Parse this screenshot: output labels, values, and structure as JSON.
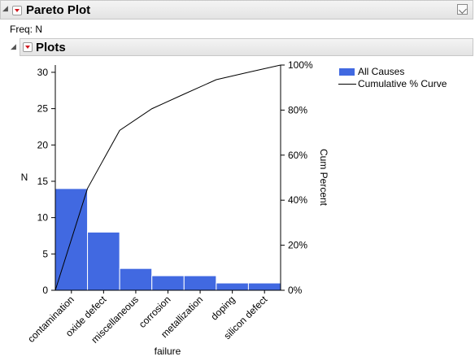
{
  "report": {
    "title": "Pareto Plot",
    "freq_label": "Freq: N"
  },
  "plots_section": {
    "title": "Plots"
  },
  "legend": {
    "items": [
      {
        "label": "All Causes"
      },
      {
        "label": "Cumulative % Curve"
      }
    ]
  },
  "colors": {
    "bar": "#4169e1",
    "header_menu": "#d0181f"
  },
  "chart_data": {
    "type": "bar",
    "categories": [
      "contamination",
      "oxide defect",
      "miscellaneous",
      "corrosion",
      "metallization",
      "doping",
      "silicon defect"
    ],
    "series": [
      {
        "name": "All Causes",
        "values": [
          14,
          8,
          3,
          2,
          2,
          1,
          1
        ]
      },
      {
        "name": "Cumulative % Curve",
        "values": [
          45.2,
          71.0,
          80.6,
          87.1,
          93.5,
          96.8,
          100
        ]
      }
    ],
    "xlabel": "failure",
    "ylabel": "N",
    "y2label": "Cum Percent",
    "ylim": [
      0,
      31
    ],
    "y2lim": [
      0,
      100
    ],
    "yticks": [
      "0",
      "5",
      "10",
      "15",
      "20",
      "25",
      "30"
    ],
    "y2ticks": [
      "0%",
      "20%",
      "40%",
      "60%",
      "80%",
      "100%"
    ],
    "grid": false,
    "legend_position": "right"
  }
}
